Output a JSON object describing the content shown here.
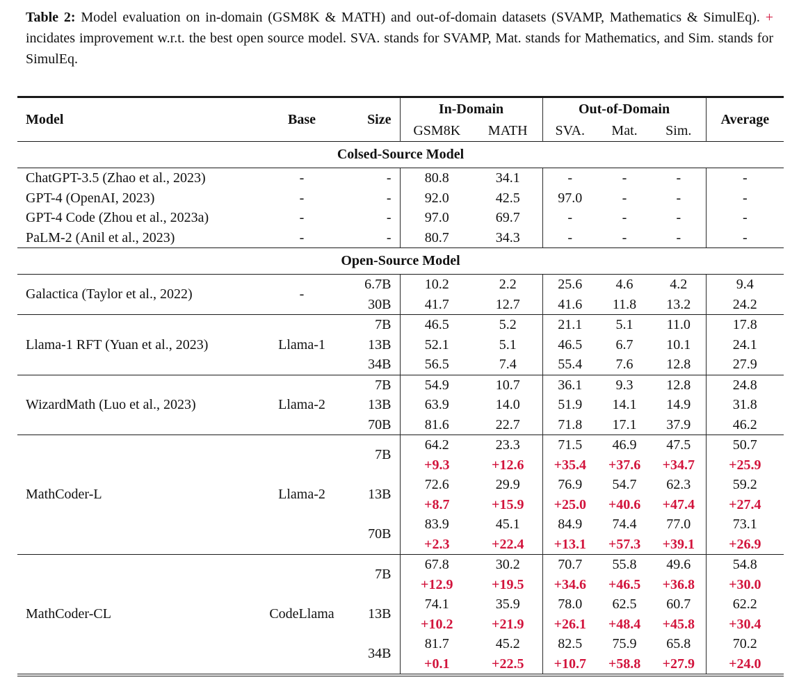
{
  "caption": {
    "label": "Table 2:",
    "text_before_plus": " Model evaluation on in-domain (GSM8K & MATH) and out-of-domain datasets (SVAMP, Mathematics & SimulEq). ",
    "plus_sign": "+",
    "text_after_plus": " incidates improvement w.r.t. the best open source model. SVA. stands for SVAMP, Mat. stands for Mathematics, and Sim. stands for SimulEq."
  },
  "colors": {
    "accent_red": "#d2143c",
    "text": "#111111",
    "rule": "#1a1a1a",
    "background": "#ffffff"
  },
  "table": {
    "headers": {
      "model": "Model",
      "base": "Base",
      "size": "Size",
      "in_domain": "In-Domain",
      "out_of_domain": "Out-of-Domain",
      "gsm8k": "GSM8K",
      "math": "MATH",
      "sva": "SVA.",
      "mat": "Mat.",
      "sim": "Sim.",
      "average": "Average"
    },
    "score_columns": [
      "GSM8K",
      "MATH",
      "SVA.",
      "Mat.",
      "Sim.",
      "Average"
    ],
    "sections": [
      {
        "title": "Colsed-Source Model",
        "dividers": false,
        "groups": [
          {
            "model": "ChatGPT-3.5 (Zhao et al., 2023)",
            "base": "-",
            "rows": [
              {
                "size": "-",
                "values": [
                  "80.8",
                  "34.1",
                  "-",
                  "-",
                  "-",
                  "-"
                ]
              }
            ]
          },
          {
            "model": "GPT-4 (OpenAI, 2023)",
            "base": "-",
            "rows": [
              {
                "size": "-",
                "values": [
                  "92.0",
                  "42.5",
                  "97.0",
                  "-",
                  "-",
                  "-"
                ]
              }
            ]
          },
          {
            "model": "GPT-4 Code (Zhou et al., 2023a)",
            "base": "-",
            "rows": [
              {
                "size": "-",
                "values": [
                  "97.0",
                  "69.7",
                  "-",
                  "-",
                  "-",
                  "-"
                ]
              }
            ]
          },
          {
            "model": "PaLM-2 (Anil et al., 2023)",
            "base": "-",
            "rows": [
              {
                "size": "-",
                "values": [
                  "80.7",
                  "34.3",
                  "-",
                  "-",
                  "-",
                  "-"
                ]
              }
            ]
          }
        ]
      },
      {
        "title": "Open-Source Model",
        "dividers": true,
        "groups": [
          {
            "model": "Galactica (Taylor et al., 2022)",
            "base": "-",
            "rows": [
              {
                "size": "6.7B",
                "values": [
                  "10.2",
                  "2.2",
                  "25.6",
                  "4.6",
                  "4.2",
                  "9.4"
                ]
              },
              {
                "size": "30B",
                "values": [
                  "41.7",
                  "12.7",
                  "41.6",
                  "11.8",
                  "13.2",
                  "24.2"
                ]
              }
            ]
          },
          {
            "model": "Llama-1 RFT (Yuan et al., 2023)",
            "base": "Llama-1",
            "rows": [
              {
                "size": "7B",
                "values": [
                  "46.5",
                  "5.2",
                  "21.1",
                  "5.1",
                  "11.0",
                  "17.8"
                ]
              },
              {
                "size": "13B",
                "values": [
                  "52.1",
                  "5.1",
                  "46.5",
                  "6.7",
                  "10.1",
                  "24.1"
                ]
              },
              {
                "size": "34B",
                "values": [
                  "56.5",
                  "7.4",
                  "55.4",
                  "7.6",
                  "12.8",
                  "27.9"
                ]
              }
            ]
          },
          {
            "model": "WizardMath (Luo et al., 2023)",
            "base": "Llama-2",
            "rows": [
              {
                "size": "7B",
                "values": [
                  "54.9",
                  "10.7",
                  "36.1",
                  "9.3",
                  "12.8",
                  "24.8"
                ]
              },
              {
                "size": "13B",
                "values": [
                  "63.9",
                  "14.0",
                  "51.9",
                  "14.1",
                  "14.9",
                  "31.8"
                ]
              },
              {
                "size": "70B",
                "values": [
                  "81.6",
                  "22.7",
                  "71.8",
                  "17.1",
                  "37.9",
                  "46.2"
                ]
              }
            ]
          },
          {
            "model": "MathCoder-L",
            "base": "Llama-2",
            "rows": [
              {
                "size": "7B",
                "values": [
                  "64.2",
                  "23.3",
                  "71.5",
                  "46.9",
                  "47.5",
                  "50.7"
                ],
                "improvements": [
                  "+9.3",
                  "+12.6",
                  "+35.4",
                  "+37.6",
                  "+34.7",
                  "+25.9"
                ]
              },
              {
                "size": "13B",
                "values": [
                  "72.6",
                  "29.9",
                  "76.9",
                  "54.7",
                  "62.3",
                  "59.2"
                ],
                "improvements": [
                  "+8.7",
                  "+15.9",
                  "+25.0",
                  "+40.6",
                  "+47.4",
                  "+27.4"
                ]
              },
              {
                "size": "70B",
                "values": [
                  "83.9",
                  "45.1",
                  "84.9",
                  "74.4",
                  "77.0",
                  "73.1"
                ],
                "improvements": [
                  "+2.3",
                  "+22.4",
                  "+13.1",
                  "+57.3",
                  "+39.1",
                  "+26.9"
                ]
              }
            ]
          },
          {
            "model": "MathCoder-CL",
            "base": "CodeLlama",
            "rows": [
              {
                "size": "7B",
                "values": [
                  "67.8",
                  "30.2",
                  "70.7",
                  "55.8",
                  "49.6",
                  "54.8"
                ],
                "improvements": [
                  "+12.9",
                  "+19.5",
                  "+34.6",
                  "+46.5",
                  "+36.8",
                  "+30.0"
                ]
              },
              {
                "size": "13B",
                "values": [
                  "74.1",
                  "35.9",
                  "78.0",
                  "62.5",
                  "60.7",
                  "62.2"
                ],
                "improvements": [
                  "+10.2",
                  "+21.9",
                  "+26.1",
                  "+48.4",
                  "+45.8",
                  "+30.4"
                ]
              },
              {
                "size": "34B",
                "values": [
                  "81.7",
                  "45.2",
                  "82.5",
                  "75.9",
                  "65.8",
                  "70.2"
                ],
                "improvements": [
                  "+0.1",
                  "+22.5",
                  "+10.7",
                  "+58.8",
                  "+27.9",
                  "+24.0"
                ]
              }
            ]
          }
        ]
      }
    ]
  }
}
